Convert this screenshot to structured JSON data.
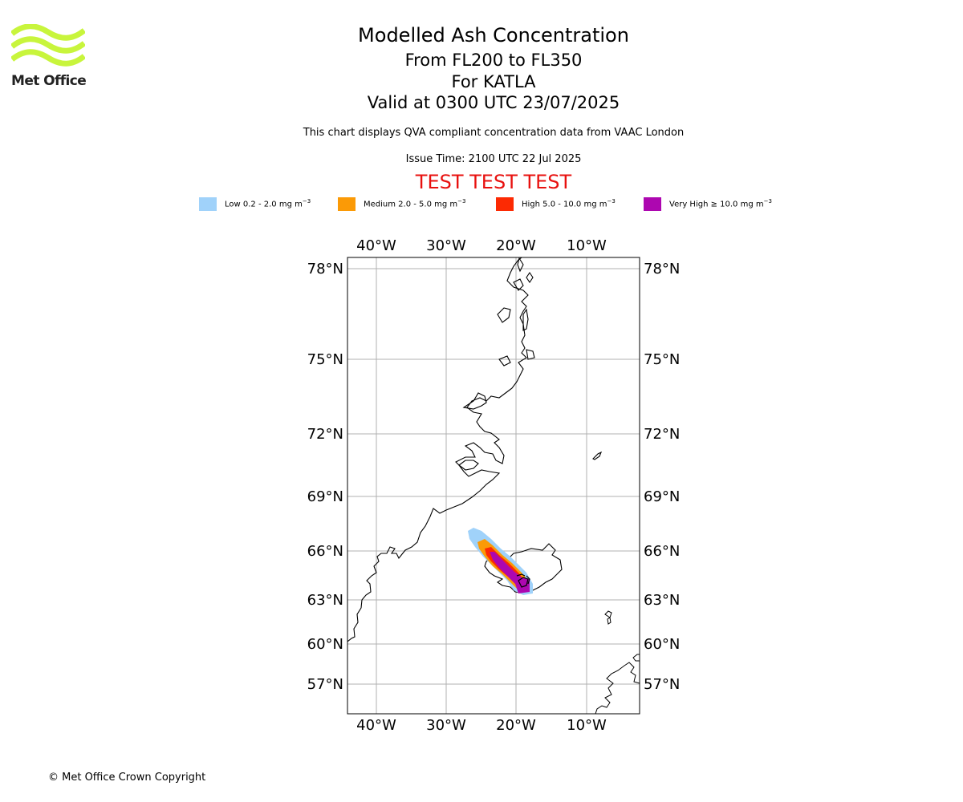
{
  "logo": {
    "text": "Met Office",
    "brand_color": "#c8f53c"
  },
  "header": {
    "title": "Modelled Ash Concentration",
    "levels": "From FL200 to FL350",
    "volcano": "For KATLA",
    "valid": "Valid at 0300 UTC 23/07/2025",
    "description": "This chart displays QVA compliant concentration data from VAAC London",
    "issue_time": "Issue Time: 2100 UTC 22 Jul 2025",
    "test_banner": "TEST TEST TEST",
    "test_color": "#e8110f"
  },
  "legend": [
    {
      "label": "Low 0.2 - 2.0 mg m",
      "unit_exp": "−3",
      "color": "#a0d2fa"
    },
    {
      "label": "Medium 2.0 - 5.0 mg m",
      "unit_exp": "−3",
      "color": "#fb9a06"
    },
    {
      "label": "High 5.0 - 10.0 mg m",
      "unit_exp": "−3",
      "color": "#fc2a03"
    },
    {
      "label": "Very High ≥ 10.0 mg m",
      "unit_exp": "−3",
      "color": "#ad07b0"
    }
  ],
  "map": {
    "lon_ticks": [
      "40°W",
      "30°W",
      "20°W",
      "10°W"
    ],
    "lat_ticks": [
      "78°N",
      "75°N",
      "72°N",
      "69°N",
      "66°N",
      "63°N",
      "60°N",
      "57°N"
    ],
    "gridlines": true
  },
  "footer": {
    "copyright": "© Met Office Crown Copyright"
  }
}
